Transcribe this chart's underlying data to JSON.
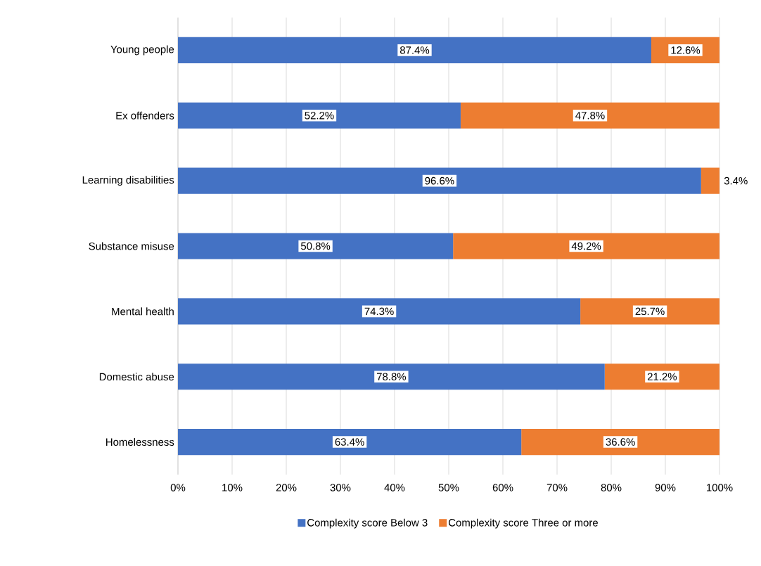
{
  "chart_data": {
    "type": "bar",
    "orientation": "horizontal",
    "stacked": true,
    "categories": [
      "Young people",
      "Ex offenders",
      "Learning disabilities",
      "Substance misuse",
      "Mental health",
      "Domestic abuse",
      "Homelessness"
    ],
    "series": [
      {
        "name": "Complexity score Below 3",
        "color": "#4472c4",
        "values": [
          87.4,
          52.2,
          96.6,
          50.8,
          74.3,
          78.8,
          63.4
        ],
        "value_labels": [
          "87.4%",
          "52.2%",
          "96.6%",
          "50.8%",
          "74.3%",
          "78.8%",
          "63.4%"
        ]
      },
      {
        "name": "Complexity score Three or more",
        "color": "#ed7d31",
        "values": [
          12.6,
          47.8,
          3.4,
          49.2,
          25.7,
          21.2,
          36.6
        ],
        "value_labels": [
          "12.6%",
          "47.8%",
          "3.4%",
          "49.2%",
          "25.7%",
          "21.2%",
          "36.6%"
        ]
      }
    ],
    "xlim": [
      0,
      100
    ],
    "xticks": [
      {
        "value": 0,
        "label": "0%"
      },
      {
        "value": 10,
        "label": "10%"
      },
      {
        "value": 20,
        "label": "20%"
      },
      {
        "value": 30,
        "label": "30%"
      },
      {
        "value": 40,
        "label": "40%"
      },
      {
        "value": 50,
        "label": "50%"
      },
      {
        "value": 60,
        "label": "60%"
      },
      {
        "value": 70,
        "label": "70%"
      },
      {
        "value": 80,
        "label": "80%"
      },
      {
        "value": 90,
        "label": "90%"
      },
      {
        "value": 100,
        "label": "100%"
      }
    ],
    "grid": "x",
    "legend": "bottom"
  }
}
